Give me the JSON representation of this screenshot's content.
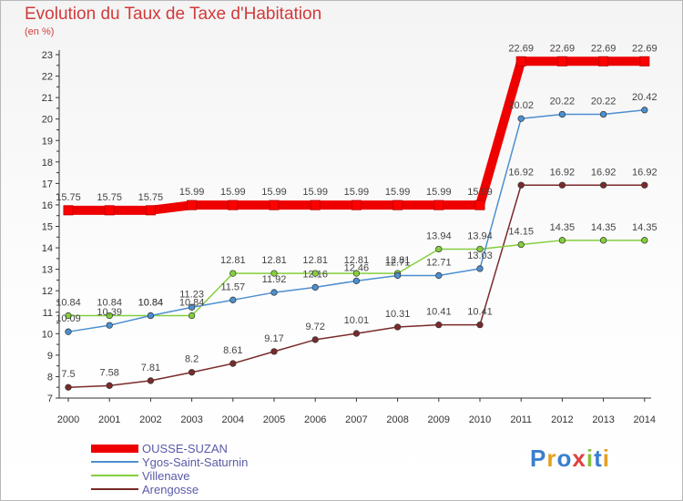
{
  "chart_data": {
    "type": "line",
    "title": "Evolution du Taux de Taxe d'Habitation",
    "unit_label": "(en %)",
    "x": [
      "2000",
      "2001",
      "2002",
      "2003",
      "2004",
      "2005",
      "2006",
      "2007",
      "2008",
      "2009",
      "2010",
      "2011",
      "2012",
      "2013",
      "2014"
    ],
    "ylim": [
      7,
      23
    ],
    "yticks": [
      7,
      8,
      9,
      10,
      11,
      12,
      13,
      14,
      15,
      16,
      17,
      18,
      19,
      20,
      21,
      22,
      23
    ],
    "grid": false,
    "series": [
      {
        "name": "OUSSE-SUZAN",
        "color": "#ee0000",
        "labels": [
          "15.75",
          "15.75",
          "15.75",
          "15.99",
          "15.99",
          "15.99",
          "15.99",
          "15.99",
          "15.99",
          "15.99",
          "15.99",
          "22.69",
          "22.69",
          "22.69",
          "22.69"
        ],
        "values": [
          15.75,
          15.75,
          15.75,
          15.99,
          15.99,
          15.99,
          15.99,
          15.99,
          15.99,
          15.99,
          15.99,
          22.69,
          22.69,
          22.69,
          22.69
        ]
      },
      {
        "name": "Ygos-Saint-Saturnin",
        "color": "#4d8fcf",
        "labels": [
          "10.09",
          "10.39",
          "10.84",
          "11.23",
          "11.57",
          "11.92",
          "12.16",
          "12.46",
          "12.71",
          "12.71",
          "13.03",
          "20.02",
          "20.22",
          "20.22",
          "20.42"
        ],
        "values": [
          10.09,
          10.39,
          10.84,
          11.23,
          11.57,
          11.92,
          12.16,
          12.46,
          12.71,
          12.71,
          13.03,
          20.02,
          20.22,
          20.22,
          20.42
        ]
      },
      {
        "name": "Villenave",
        "color": "#84cf3c",
        "labels": [
          "10.84",
          "10.84",
          "10.84",
          "10.84",
          "12.81",
          "12.81",
          "12.81",
          "12.81",
          "12.81",
          "13.94",
          "13.94",
          "14.15",
          "14.35",
          "14.35",
          "14.35"
        ],
        "values": [
          10.84,
          10.84,
          10.84,
          10.84,
          12.81,
          12.81,
          12.81,
          12.81,
          12.81,
          13.94,
          13.94,
          14.15,
          14.35,
          14.35,
          14.35
        ]
      },
      {
        "name": "Arengosse",
        "color": "#7a2a2a",
        "labels": [
          "7.5",
          "7.58",
          "7.81",
          "8.2",
          "8.61",
          "9.17",
          "9.72",
          "10.01",
          "10.31",
          "10.41",
          "10.41",
          "16.92",
          "16.92",
          "16.92",
          "16.92"
        ],
        "values": [
          7.5,
          7.58,
          7.81,
          8.2,
          8.61,
          9.17,
          9.72,
          10.01,
          10.31,
          10.41,
          10.41,
          16.92,
          16.92,
          16.92,
          16.92
        ]
      }
    ],
    "legend_position": "bottom-left"
  },
  "logo": {
    "text": "Proxiti"
  }
}
